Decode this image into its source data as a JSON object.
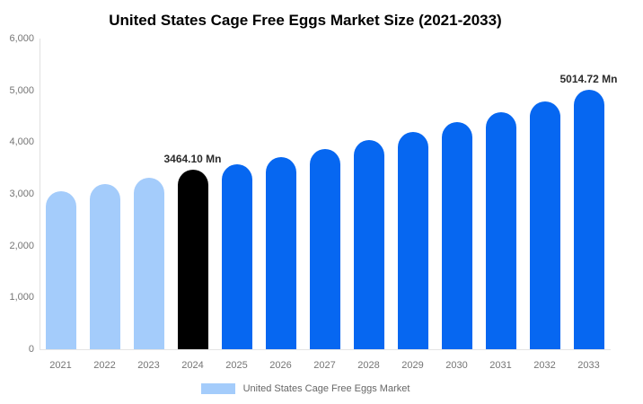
{
  "title": "United States Cage Free Eggs Market Size (2021-2033)",
  "legend": {
    "label": "United States Cage Free Eggs Market",
    "color": "#a4ccfb"
  },
  "colors": {
    "historical_bar": "#a4ccfb",
    "base_year_bar": "#000000",
    "forecast_bar": "#0667f1",
    "axis_line": "#e0e0e0",
    "tick_text": "#757575",
    "value_label_text": "#2b2b2b"
  },
  "chart_data": {
    "type": "bar",
    "title": "United States Cage Free Eggs Market Size (2021-2033)",
    "categories": [
      2021,
      2022,
      2023,
      2024,
      2025,
      2026,
      2027,
      2028,
      2029,
      2030,
      2031,
      2032,
      2033
    ],
    "values": [
      3060,
      3185,
      3320,
      3464.1,
      3580,
      3715,
      3870,
      4035,
      4205,
      4395,
      4585,
      4790,
      5014.72
    ],
    "bar_colors": [
      "#a4ccfb",
      "#a4ccfb",
      "#a4ccfb",
      "#000000",
      "#0667f1",
      "#0667f1",
      "#0667f1",
      "#0667f1",
      "#0667f1",
      "#0667f1",
      "#0667f1",
      "#0667f1",
      "#0667f1"
    ],
    "data_labels": [
      {
        "index": 3,
        "text": "3464.10 Mn"
      },
      {
        "index": 12,
        "text": "5014.72 Mn"
      }
    ],
    "xlabel": "",
    "ylabel": "",
    "ylim": [
      0,
      6000
    ],
    "grid": false,
    "legend_position": "bottom",
    "y_ticks": [
      {
        "value": 6000,
        "label": "6,000"
      },
      {
        "value": 5000,
        "label": "5,000"
      },
      {
        "value": 4000,
        "label": "4,000"
      },
      {
        "value": 3000,
        "label": "3,000"
      },
      {
        "value": 2000,
        "label": "2,000"
      },
      {
        "value": 1000,
        "label": "1,000"
      },
      {
        "value": 0,
        "label": "0"
      }
    ]
  }
}
